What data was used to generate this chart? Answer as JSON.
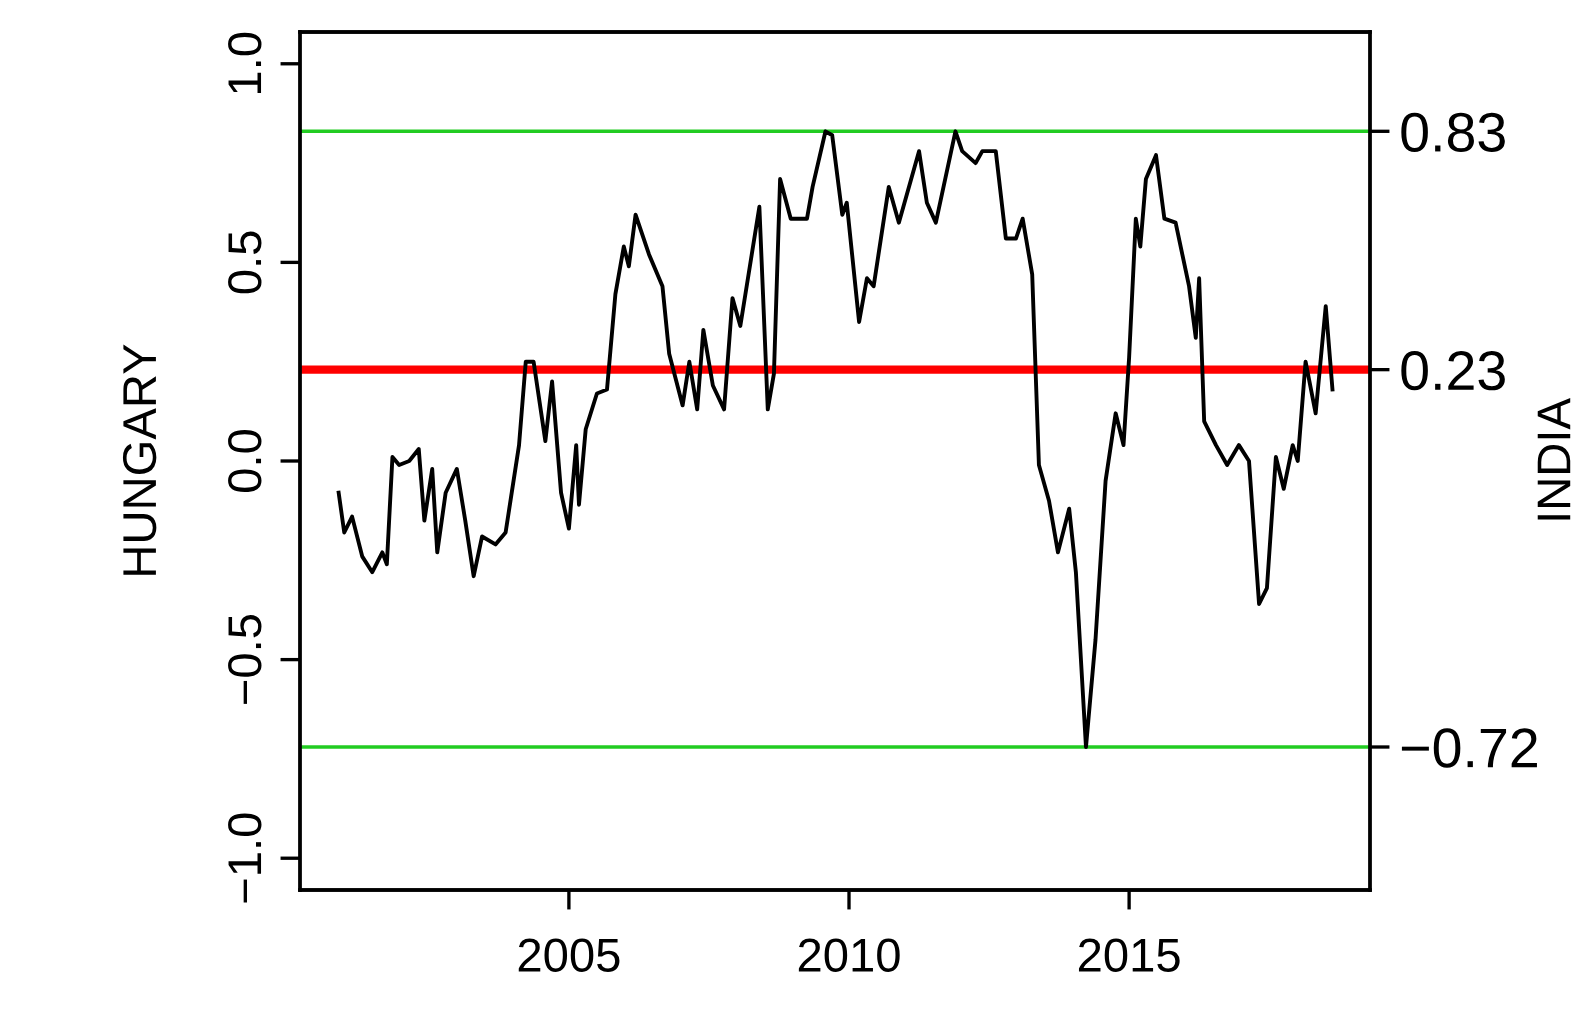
{
  "chart_data": {
    "type": "line",
    "xlabel": null,
    "ylabel": "HUNGARY",
    "y2label": "INDIA",
    "x": [
      2000.89,
      2000.99,
      2001.13,
      2001.31,
      2001.49,
      2001.67,
      2001.75,
      2001.85,
      2001.97,
      2002.15,
      2002.32,
      2002.42,
      2002.56,
      2002.65,
      2002.8,
      2003.0,
      2003.15,
      2003.3,
      2003.45,
      2003.69,
      2003.87,
      2004.11,
      2004.23,
      2004.37,
      2004.58,
      2004.7,
      2004.86,
      2005.0,
      2005.13,
      2005.18,
      2005.3,
      2005.5,
      2005.68,
      2005.83,
      2005.98,
      2006.07,
      2006.19,
      2006.43,
      2006.67,
      2006.79,
      2007.03,
      2007.15,
      2007.29,
      2007.4,
      2007.57,
      2007.77,
      2007.92,
      2008.06,
      2008.4,
      2008.55,
      2008.66,
      2008.77,
      2008.96,
      2009.25,
      2009.35,
      2009.58,
      2009.7,
      2009.88,
      2009.96,
      2010.18,
      2010.32,
      2010.44,
      2010.71,
      2010.89,
      2011.25,
      2011.39,
      2011.55,
      2011.9,
      2012.02,
      2012.26,
      2012.38,
      2012.62,
      2012.8,
      2012.98,
      2013.1,
      2013.27,
      2013.39,
      2013.57,
      2013.73,
      2013.93,
      2014.05,
      2014.23,
      2014.4,
      2014.58,
      2014.76,
      2014.9,
      2015.0,
      2015.12,
      2015.2,
      2015.3,
      2015.48,
      2015.63,
      2015.83,
      2016.07,
      2016.19,
      2016.25,
      2016.34,
      2016.55,
      2016.75,
      2016.96,
      2017.14,
      2017.32,
      2017.46,
      2017.62,
      2017.76,
      2017.92,
      2018.01,
      2018.15,
      2018.33,
      2018.51,
      2018.63
    ],
    "series": [
      {
        "color": "#000000",
        "values": [
          -0.08,
          -0.18,
          -0.14,
          -0.24,
          -0.28,
          -0.23,
          -0.26,
          0.01,
          -0.01,
          0.0,
          0.03,
          -0.15,
          -0.02,
          -0.23,
          -0.08,
          -0.02,
          -0.15,
          -0.29,
          -0.19,
          -0.21,
          -0.18,
          0.04,
          0.25,
          0.25,
          0.05,
          0.2,
          -0.08,
          -0.17,
          0.04,
          -0.11,
          0.08,
          0.17,
          0.18,
          0.42,
          0.54,
          0.49,
          0.62,
          0.52,
          0.44,
          0.27,
          0.14,
          0.25,
          0.13,
          0.33,
          0.19,
          0.13,
          0.41,
          0.34,
          0.64,
          0.13,
          0.22,
          0.71,
          0.61,
          0.61,
          0.69,
          0.83,
          0.82,
          0.62,
          0.65,
          0.35,
          0.46,
          0.44,
          0.69,
          0.6,
          0.78,
          0.65,
          0.6,
          0.83,
          0.78,
          0.75,
          0.78,
          0.78,
          0.56,
          0.56,
          0.61,
          0.47,
          -0.01,
          -0.1,
          -0.23,
          -0.12,
          -0.28,
          -0.72,
          -0.45,
          -0.05,
          0.12,
          0.04,
          0.26,
          0.61,
          0.54,
          0.71,
          0.77,
          0.61,
          0.6,
          0.44,
          0.31,
          0.46,
          0.1,
          0.04,
          -0.01,
          0.04,
          0.0,
          -0.36,
          -0.32,
          0.01,
          -0.07,
          0.04,
          0.0,
          0.25,
          0.12,
          0.39,
          0.18
        ]
      }
    ],
    "xlim": [
      2000.2,
      2019.3
    ],
    "xticks": [
      2005,
      2010,
      2015
    ],
    "ylim": [
      -1.08,
      1.08
    ],
    "yticks": [
      {
        "value": -1.0,
        "label": "−1.0"
      },
      {
        "value": -0.5,
        "label": "−0.5"
      },
      {
        "value": 0.0,
        "label": "0.0"
      },
      {
        "value": 0.5,
        "label": "0.5"
      },
      {
        "value": 1.0,
        "label": "1.0"
      }
    ],
    "y2lim": [
      -1.08,
      1.08
    ],
    "y2ticks": [
      {
        "value": 0.83,
        "label": "0.83"
      },
      {
        "value": 0.23,
        "label": "0.23"
      },
      {
        "value": -0.72,
        "label": "−0.72"
      }
    ],
    "ref_lines": [
      {
        "axis": "y",
        "value": 0.83,
        "color": "#22cc22"
      },
      {
        "axis": "y",
        "value": 0.23,
        "color": "#ff0000"
      },
      {
        "axis": "y",
        "value": -0.72,
        "color": "#22cc22"
      }
    ],
    "grid": false
  }
}
